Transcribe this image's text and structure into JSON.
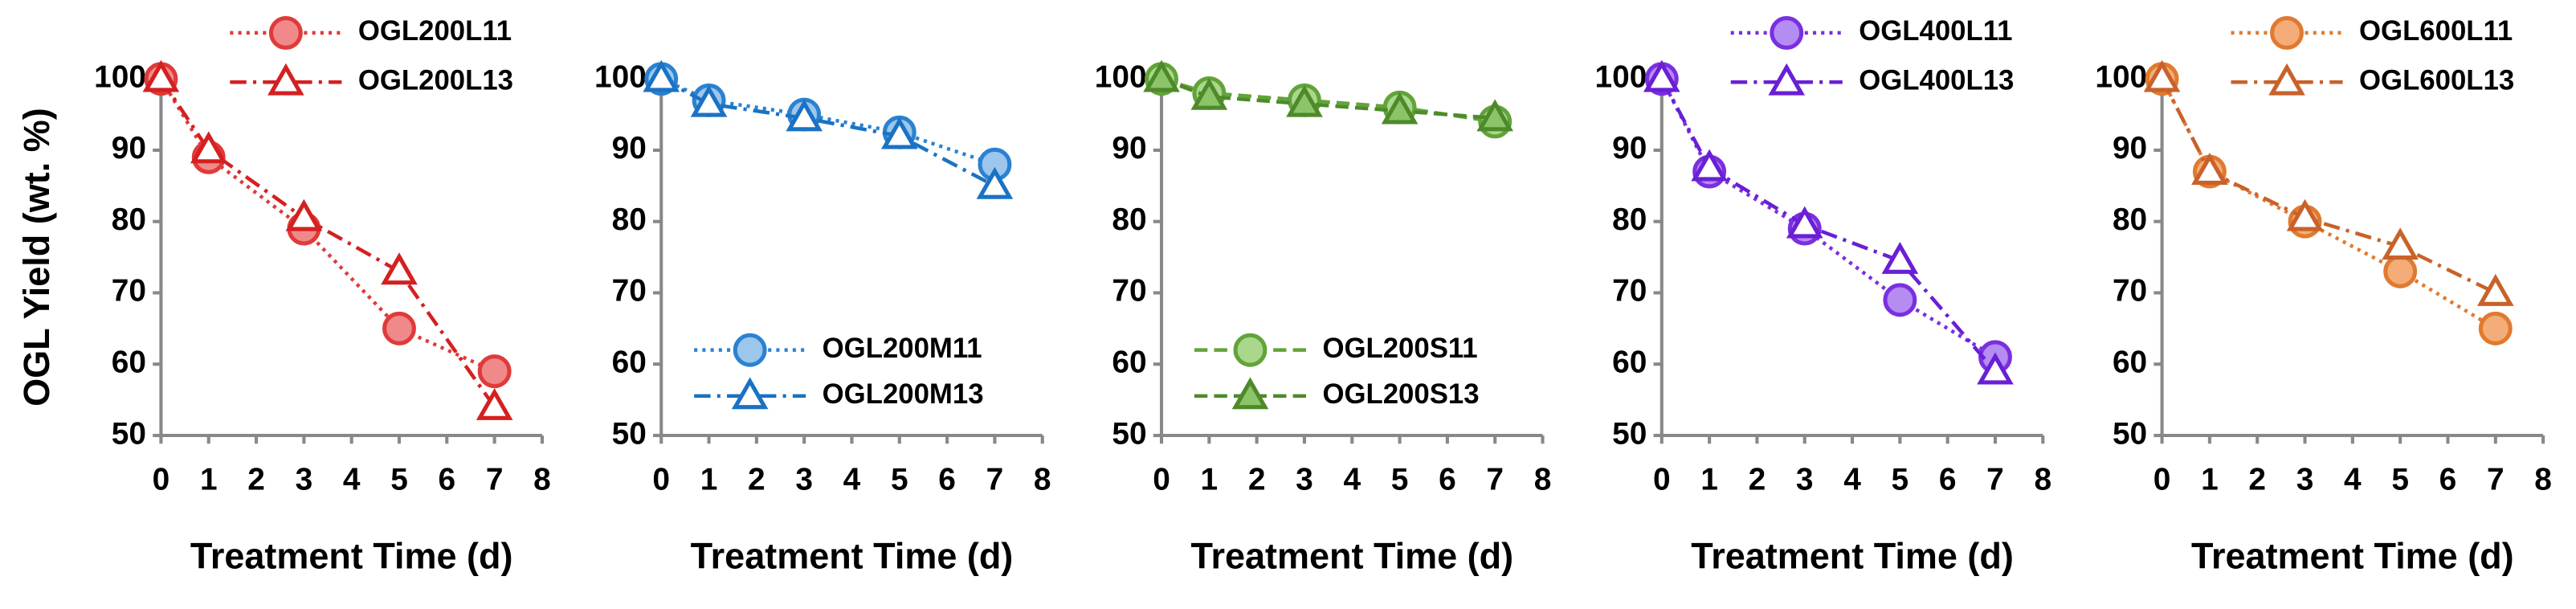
{
  "chart_data": [
    {
      "type": "line",
      "ylabel": "OGL Yield (wt. %)",
      "xlabel": "Treatment Time (d)",
      "x": [
        0,
        1,
        3,
        5,
        7
      ],
      "xlim": [
        0,
        8
      ],
      "xticks": [
        0,
        1,
        2,
        3,
        4,
        5,
        6,
        7,
        8
      ],
      "ylim": [
        50,
        100
      ],
      "yticks": [
        50,
        60,
        70,
        80,
        90,
        100
      ],
      "legend": "upper right",
      "series": [
        {
          "name": "OGL200L11",
          "color": "#e03a3a",
          "fill": "#f08a8a",
          "marker": "circle",
          "linestyle": "dotted",
          "values": [
            100,
            89,
            79,
            65,
            59
          ]
        },
        {
          "name": "OGL200L13",
          "color": "#d42020",
          "fill": "#ffffff",
          "marker": "triangle",
          "linestyle": "dashdot",
          "values": [
            100,
            90,
            80.5,
            73,
            54
          ]
        }
      ]
    },
    {
      "type": "line",
      "xlabel": "Treatment Time (d)",
      "x": [
        0,
        1,
        3,
        5,
        7
      ],
      "xlim": [
        0,
        8
      ],
      "xticks": [
        0,
        1,
        2,
        3,
        4,
        5,
        6,
        7,
        8
      ],
      "ylim": [
        50,
        100
      ],
      "yticks": [
        50,
        60,
        70,
        80,
        90,
        100
      ],
      "legend": "lower center",
      "series": [
        {
          "name": "OGL200M11",
          "color": "#2a82d0",
          "fill": "#9cc6ec",
          "marker": "circle",
          "linestyle": "dotted",
          "values": [
            100,
            97,
            95,
            92.5,
            88
          ]
        },
        {
          "name": "OGL200M13",
          "color": "#1a72c4",
          "fill": "#ffffff",
          "marker": "triangle",
          "linestyle": "dashdot",
          "values": [
            100,
            96.5,
            94.5,
            92,
            85
          ]
        }
      ]
    },
    {
      "type": "line",
      "xlabel": "Treatment Time (d)",
      "x": [
        0,
        1,
        3,
        5,
        7
      ],
      "xlim": [
        0,
        8
      ],
      "xticks": [
        0,
        1,
        2,
        3,
        4,
        5,
        6,
        7,
        8
      ],
      "ylim": [
        50,
        100
      ],
      "yticks": [
        50,
        60,
        70,
        80,
        90,
        100
      ],
      "legend": "lower center",
      "series": [
        {
          "name": "OGL200S11",
          "color": "#62a33a",
          "fill": "#a9d88c",
          "marker": "circle",
          "linestyle": "dashed",
          "values": [
            100,
            98,
            97,
            96,
            94
          ]
        },
        {
          "name": "OGL200S13",
          "color": "#4e8a2a",
          "fill": "#8cc46a",
          "marker": "triangle",
          "linestyle": "dashed",
          "values": [
            100,
            97.5,
            96.5,
            95.5,
            94.5
          ]
        }
      ]
    },
    {
      "type": "line",
      "xlabel": "Treatment Time (d)",
      "x": [
        0,
        1,
        3,
        5,
        7
      ],
      "xlim": [
        0,
        8
      ],
      "xticks": [
        0,
        1,
        2,
        3,
        4,
        5,
        6,
        7,
        8
      ],
      "ylim": [
        50,
        100
      ],
      "yticks": [
        50,
        60,
        70,
        80,
        90,
        100
      ],
      "legend": "upper right",
      "series": [
        {
          "name": "OGL400L11",
          "color": "#7a2fe0",
          "fill": "#b48cf2",
          "marker": "circle",
          "linestyle": "dotted",
          "values": [
            100,
            87,
            79,
            69,
            61
          ]
        },
        {
          "name": "OGL400L13",
          "color": "#6a1fd4",
          "fill": "#ffffff",
          "marker": "triangle",
          "linestyle": "dashdot",
          "values": [
            100,
            87.5,
            79.5,
            74.5,
            59
          ]
        }
      ]
    },
    {
      "type": "line",
      "xlabel": "Treatment Time (d)",
      "x": [
        0,
        1,
        3,
        5,
        7
      ],
      "xlim": [
        0,
        8
      ],
      "xticks": [
        0,
        1,
        2,
        3,
        4,
        5,
        6,
        7,
        8
      ],
      "ylim": [
        50,
        100
      ],
      "yticks": [
        50,
        60,
        70,
        80,
        90,
        100
      ],
      "legend": "upper right",
      "series": [
        {
          "name": "OGL600L11",
          "color": "#e07a30",
          "fill": "#f4ad78",
          "marker": "circle",
          "linestyle": "dotted",
          "values": [
            100,
            87,
            80,
            73,
            65
          ]
        },
        {
          "name": "OGL600L13",
          "color": "#c8622a",
          "fill": "#ffffff",
          "marker": "triangle",
          "linestyle": "dashdot",
          "values": [
            100,
            87,
            80.5,
            76.5,
            70
          ]
        }
      ]
    }
  ]
}
